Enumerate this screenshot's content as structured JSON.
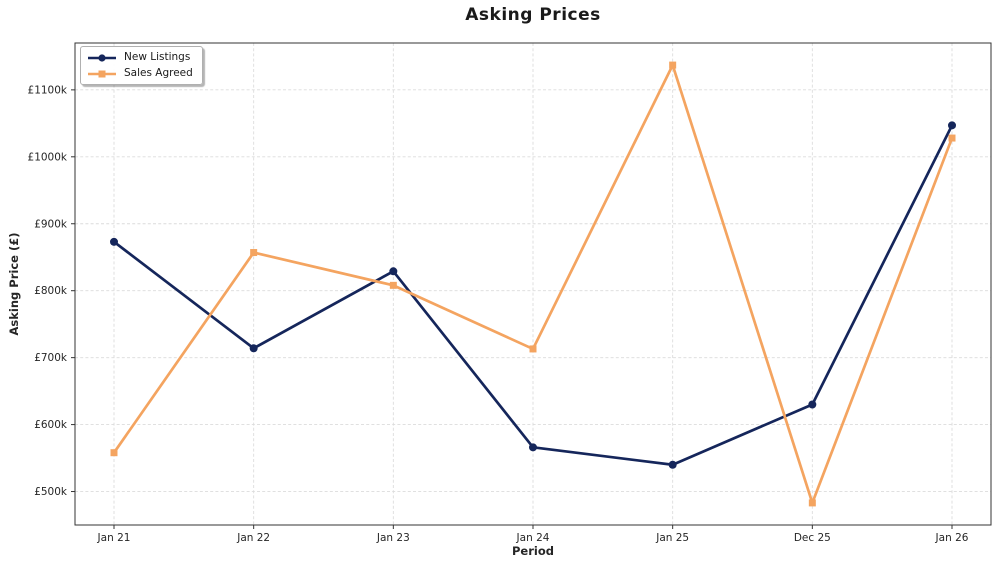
{
  "title": "Asking Prices",
  "axes": {
    "xlabel": "Period",
    "ylabel": "Asking Price (£)"
  },
  "legend": {
    "position": "upper-left",
    "items": [
      "New Listings",
      "Sales Agreed"
    ]
  },
  "chart_data": {
    "type": "line",
    "title": "Asking Prices",
    "xlabel": "Period",
    "ylabel": "Asking Price (£)",
    "categories": [
      "Jan 21",
      "Jan 22",
      "Jan 23",
      "Jan 24",
      "Jan 25",
      "Dec 25",
      "Jan 26"
    ],
    "series": [
      {
        "name": "New Listings",
        "color": "#15265B",
        "marker": "circle",
        "linestyle": "solid",
        "values": [
          873000,
          714000,
          829000,
          566000,
          540000,
          630000,
          1047000
        ]
      },
      {
        "name": "Sales Agreed",
        "color": "#F4A460",
        "marker": "square",
        "linestyle": "solid",
        "values": [
          558000,
          857000,
          808000,
          713000,
          1137000,
          483000,
          1028000
        ]
      }
    ],
    "ylim": [
      450000,
      1170000
    ],
    "yticks": [
      500000,
      600000,
      700000,
      800000,
      900000,
      1000000,
      1100000
    ],
    "ytick_labels": [
      "£500k",
      "£600k",
      "£700k",
      "£800k",
      "£900k",
      "£1000k",
      "£1100k"
    ],
    "grid": true,
    "grid_style": "dashed",
    "legend_position": "upper-left"
  },
  "colors": {
    "series_new_listings": "#15265B",
    "series_sales_agreed": "#F4A460",
    "gridline": "#dcdcdc",
    "spine": "#333333",
    "tick_label": "#262626",
    "background": "#ffffff"
  }
}
